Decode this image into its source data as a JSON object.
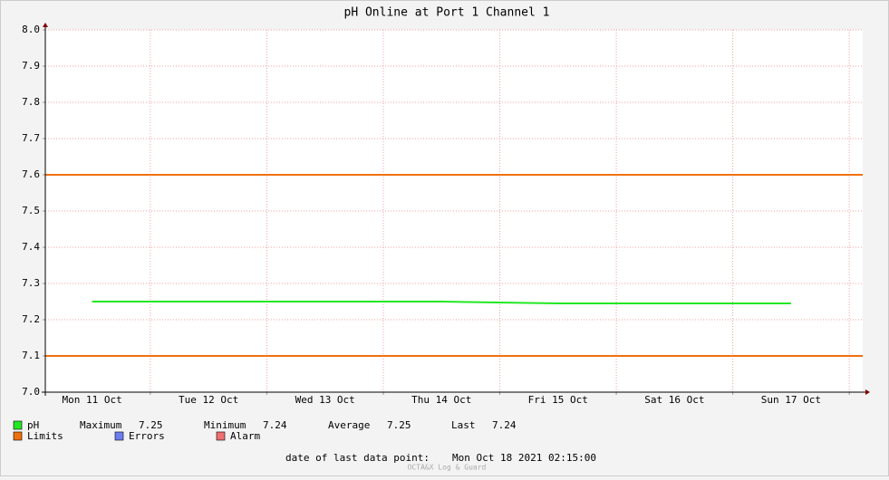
{
  "chart_data": {
    "type": "line",
    "title": "pH Online at Port 1 Channel 1",
    "categories": [
      "Mon 11 Oct",
      "Tue 12 Oct",
      "Wed 13 Oct",
      "Thu 14 Oct",
      "Fri 15 Oct",
      "Sat 16 Oct",
      "Sun 17 Oct"
    ],
    "series": [
      {
        "name": "pH",
        "color": "#22e822",
        "values": [
          7.25,
          7.25,
          7.25,
          7.25,
          7.245,
          7.245,
          7.245
        ]
      }
    ],
    "limits": {
      "name": "Limits",
      "color": "#f07010",
      "values": [
        7.6,
        7.1
      ]
    },
    "other_legend": [
      {
        "name": "Errors",
        "color": "#6e7ef0"
      },
      {
        "name": "Alarm",
        "color": "#f07070"
      }
    ],
    "stats": [
      {
        "label": "Maximum",
        "value": "7.25"
      },
      {
        "label": "Minimum",
        "value": "7.24"
      },
      {
        "label": "Average",
        "value": "7.25"
      },
      {
        "label": "Last",
        "value": "7.24"
      }
    ],
    "last_point_label": "date of last data point:",
    "last_point": "Mon Oct 18 2021 02:15:00",
    "footer": "OCTA&X Log & Guard",
    "ylim": [
      7.0,
      8.0
    ],
    "yticks": [
      {
        "value": 7.0,
        "label": "7.0"
      },
      7.1,
      7.2,
      7.3,
      7.4,
      7.5,
      7.6,
      7.7,
      7.8,
      7.9,
      {
        "value": 8.0,
        "label": "8.0"
      }
    ],
    "grid": true
  }
}
